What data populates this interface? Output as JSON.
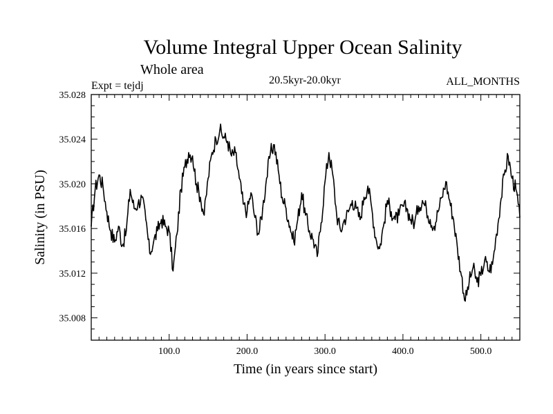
{
  "chart_data": {
    "type": "line",
    "title": "Volume Integral Upper Ocean Salinity",
    "subtitle": "Whole area",
    "experiment": "Expt = tejdj",
    "period": "20.5kyr-20.0kyr",
    "months": "ALL_MONTHS",
    "xlabel": "Time (in years since start)",
    "ylabel": "Salinity (in PSU)",
    "xlim": [
      0,
      550
    ],
    "ylim": [
      35.006,
      35.028
    ],
    "x_ticks": [
      100,
      200,
      300,
      400,
      500
    ],
    "x_tick_labels": [
      "100.0",
      "200.0",
      "300.0",
      "400.0",
      "500.0"
    ],
    "y_ticks": [
      35.008,
      35.012,
      35.016,
      35.02,
      35.024,
      35.028
    ],
    "y_tick_labels": [
      "35.008",
      "35.012",
      "35.016",
      "35.020",
      "35.024",
      "35.028"
    ],
    "series": [
      {
        "name": "Salinity",
        "x": [
          0,
          5,
          10,
          15,
          20,
          25,
          30,
          35,
          40,
          45,
          50,
          55,
          60,
          65,
          70,
          75,
          80,
          85,
          90,
          95,
          100,
          105,
          110,
          115,
          120,
          125,
          130,
          135,
          140,
          145,
          150,
          155,
          160,
          165,
          170,
          175,
          180,
          185,
          190,
          195,
          200,
          205,
          210,
          215,
          220,
          225,
          230,
          235,
          240,
          245,
          250,
          255,
          260,
          265,
          270,
          275,
          280,
          285,
          290,
          295,
          300,
          305,
          310,
          315,
          320,
          325,
          330,
          335,
          340,
          345,
          350,
          355,
          360,
          365,
          370,
          375,
          380,
          385,
          390,
          395,
          400,
          405,
          410,
          415,
          420,
          425,
          430,
          435,
          440,
          445,
          450,
          455,
          460,
          465,
          470,
          475,
          480,
          485,
          490,
          495,
          500,
          505,
          510,
          515,
          520,
          525,
          530,
          535,
          540,
          545,
          550
        ],
        "values": [
          35.0162,
          35.0195,
          35.0208,
          35.0198,
          35.0175,
          35.0158,
          35.0148,
          35.0162,
          35.0145,
          35.0158,
          35.0195,
          35.0178,
          35.0182,
          35.0188,
          35.0168,
          35.0138,
          35.0148,
          35.0158,
          35.0168,
          35.0162,
          35.0158,
          35.0122,
          35.0155,
          35.0195,
          35.0215,
          35.0228,
          35.0225,
          35.02,
          35.0188,
          35.0172,
          35.0205,
          35.0228,
          35.024,
          35.0248,
          35.0242,
          35.0238,
          35.0225,
          35.0228,
          35.0205,
          35.0182,
          35.0175,
          35.0192,
          35.017,
          35.0155,
          35.0178,
          35.0205,
          35.0228,
          35.0235,
          35.0212,
          35.0188,
          35.0178,
          35.0162,
          35.0148,
          35.0168,
          35.0192,
          35.0172,
          35.0158,
          35.015,
          35.0135,
          35.0165,
          35.0202,
          35.0228,
          35.0208,
          35.0172,
          35.0158,
          35.0168,
          35.0175,
          35.0185,
          35.0178,
          35.0168,
          35.0188,
          35.0198,
          35.0178,
          35.0152,
          35.0142,
          35.0162,
          35.0185,
          35.0175,
          35.0168,
          35.0172,
          35.018,
          35.0178,
          35.0168,
          35.0165,
          35.018,
          35.0185,
          35.0178,
          35.0168,
          35.0162,
          35.0175,
          35.0188,
          35.0202,
          35.0185,
          35.0168,
          35.0142,
          35.0118,
          35.0095,
          35.0112,
          35.0125,
          35.0112,
          35.0118,
          35.0132,
          35.0122,
          35.0128,
          35.0155,
          35.0182,
          35.0208,
          35.0225,
          35.0205,
          35.0195,
          35.017
        ]
      }
    ]
  }
}
